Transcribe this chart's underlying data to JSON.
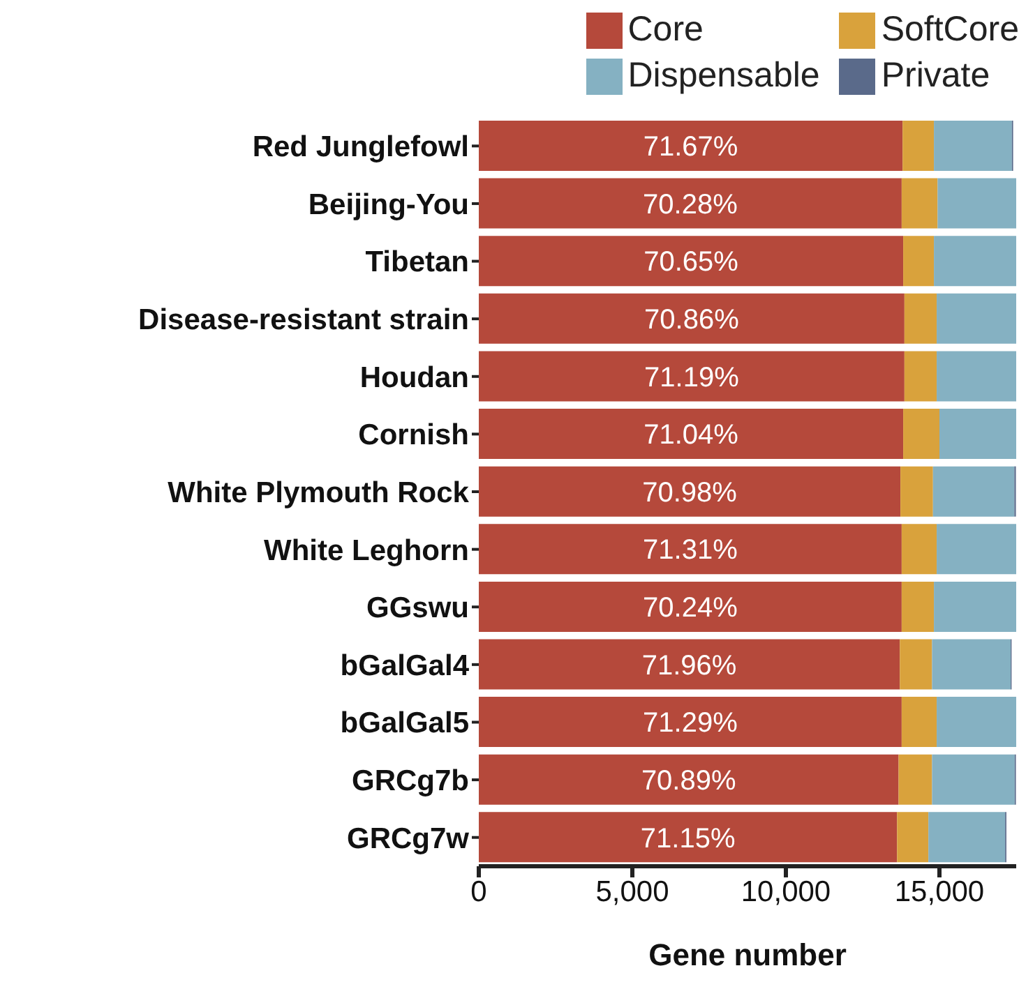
{
  "chart_data": {
    "type": "bar",
    "orientation": "horizontal",
    "stacked": true,
    "xlabel": "Gene number",
    "categories": [
      "Red Junglefowl",
      "Beijing-You",
      "Tibetan",
      "Disease-resistant strain",
      "Houdan",
      "Cornish",
      "White Plymouth Rock",
      "White Leghorn",
      "GGswu",
      "bGalGal4",
      "bGalGal5",
      "GRCg7b",
      "GRCg7w"
    ],
    "series": [
      {
        "name": "Core",
        "color": "#b5493b",
        "values": [
          13800,
          13770,
          13820,
          13860,
          13860,
          13820,
          13730,
          13770,
          13770,
          13710,
          13770,
          13670,
          13620
        ]
      },
      {
        "name": "SoftCore",
        "color": "#d9a23c",
        "values": [
          1020,
          1170,
          1000,
          1050,
          1050,
          1180,
          1060,
          1140,
          1050,
          1050,
          1140,
          1090,
          1020
        ]
      },
      {
        "name": "Dispensable",
        "color": "#85b1c2",
        "values": [
          2540,
          2560,
          2680,
          2590,
          2590,
          2500,
          2650,
          2590,
          2680,
          2560,
          2590,
          2690,
          2500
        ]
      },
      {
        "name": "Private",
        "color": "#5a6a8a",
        "values": [
          40,
          null,
          null,
          null,
          null,
          null,
          50,
          null,
          null,
          30,
          null,
          40,
          40
        ]
      }
    ],
    "annotations": [
      {
        "text": "71.67%",
        "y": "Red Junglefowl"
      },
      {
        "text": "70.28%",
        "y": "Beijing-You"
      },
      {
        "text": "70.65%",
        "y": "Tibetan"
      },
      {
        "text": "70.86%",
        "y": "Disease-resistant strain"
      },
      {
        "text": "71.19%",
        "y": "Houdan"
      },
      {
        "text": "71.04%",
        "y": "Cornish"
      },
      {
        "text": "70.98%",
        "y": "White Plymouth Rock"
      },
      {
        "text": "71.31%",
        "y": "White Leghorn"
      },
      {
        "text": "70.24%",
        "y": "GGswu"
      },
      {
        "text": "71.96%",
        "y": "bGalGal4"
      },
      {
        "text": "71.29%",
        "y": "bGalGal5"
      },
      {
        "text": "70.89%",
        "y": "GRCg7b"
      },
      {
        "text": "71.15%",
        "y": "GRCg7w"
      }
    ],
    "xlim": [
      0,
      17500
    ],
    "xticks": [
      0,
      {
        "value": 5000,
        "label": "5,000"
      },
      {
        "value": 10000,
        "label": "10,000"
      },
      {
        "value": 15000,
        "label": "15,000"
      }
    ],
    "grid": false,
    "legend": "top right"
  }
}
